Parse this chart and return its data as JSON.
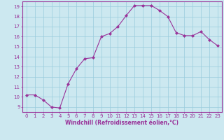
{
  "x": [
    0,
    1,
    2,
    3,
    4,
    5,
    6,
    7,
    8,
    9,
    10,
    11,
    12,
    13,
    14,
    15,
    16,
    17,
    18,
    19,
    20,
    21,
    22,
    23
  ],
  "y": [
    10.2,
    10.2,
    9.7,
    9.0,
    8.9,
    11.3,
    12.8,
    13.8,
    13.9,
    16.0,
    16.3,
    17.0,
    18.1,
    19.1,
    19.1,
    19.1,
    18.6,
    18.0,
    16.4,
    16.1,
    16.1,
    16.5,
    15.7,
    15.1
  ],
  "line_color": "#993399",
  "marker": "D",
  "marker_size": 2.0,
  "bg_color": "#cce8f0",
  "grid_color": "#99ccdd",
  "axis_color": "#993399",
  "tick_color": "#993399",
  "xlabel": "Windchill (Refroidissement éolien,°C)",
  "xlim": [
    -0.5,
    23.5
  ],
  "ylim": [
    8.5,
    19.5
  ],
  "yticks": [
    9,
    10,
    11,
    12,
    13,
    14,
    15,
    16,
    17,
    18,
    19
  ],
  "xticks": [
    0,
    1,
    2,
    3,
    4,
    5,
    6,
    7,
    8,
    9,
    10,
    11,
    12,
    13,
    14,
    15,
    16,
    17,
    18,
    19,
    20,
    21,
    22,
    23
  ]
}
